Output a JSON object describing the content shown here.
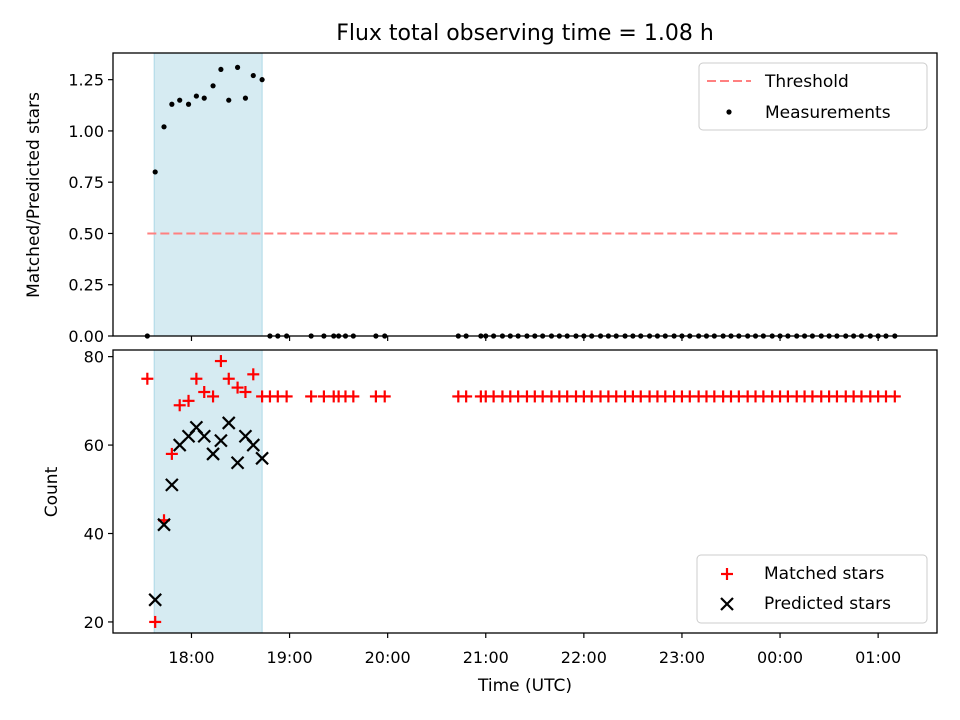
{
  "title": "Flux total observing time = 1.08 h",
  "chart_data": [
    {
      "type": "scatter",
      "panel": "top",
      "ylabel": "Matched/Predicted stars",
      "ylim": [
        0,
        1.38
      ],
      "yticks": [
        0.0,
        0.25,
        0.5,
        0.75,
        1.0,
        1.25
      ],
      "ytick_labels": [
        "0.00",
        "0.25",
        "0.50",
        "0.75",
        "1.00",
        "1.25"
      ],
      "shaded_span_hours": [
        17.62,
        18.72
      ],
      "threshold": {
        "value": 0.5,
        "x_range_hours": [
          17.55,
          25.2
        ],
        "color": "#ff8080"
      },
      "legend": {
        "position": "top-right",
        "entries": [
          "Threshold",
          "Measurements"
        ]
      },
      "series": [
        {
          "name": "Measurements",
          "color": "#000000",
          "x_hours": [
            17.55,
            17.63,
            17.72,
            17.8,
            17.88,
            17.97,
            18.05,
            18.13,
            18.22,
            18.3,
            18.38,
            18.47,
            18.55,
            18.63,
            18.72,
            18.8,
            18.88,
            18.97,
            19.22,
            19.35,
            19.45,
            19.5,
            19.57,
            19.65,
            19.88,
            19.97,
            20.72,
            20.8,
            20.95,
            21.0,
            21.08,
            21.17,
            21.25,
            21.33,
            21.42,
            21.5,
            21.58,
            21.67,
            21.75,
            21.83,
            21.92,
            22.0,
            22.08,
            22.17,
            22.25,
            22.33,
            22.42,
            22.5,
            22.58,
            22.67,
            22.75,
            22.83,
            22.92,
            23.0,
            23.08,
            23.17,
            23.25,
            23.33,
            23.42,
            23.5,
            23.58,
            23.67,
            23.75,
            23.83,
            23.92,
            24.0,
            24.08,
            24.17,
            24.25,
            24.33,
            24.42,
            24.5,
            24.58,
            24.67,
            24.75,
            24.83,
            24.92,
            25.0,
            25.08,
            25.17
          ],
          "values": [
            0.0,
            0.8,
            1.02,
            1.13,
            1.15,
            1.13,
            1.17,
            1.16,
            1.22,
            1.3,
            1.15,
            1.31,
            1.16,
            1.27,
            1.25,
            0.0,
            0.0,
            0.0,
            0.0,
            0.0,
            0.0,
            0.0,
            0.0,
            0.0,
            0.0,
            0.0,
            0.0,
            0.0,
            0.0,
            0.0,
            0.0,
            0.0,
            0.0,
            0.0,
            0.0,
            0.0,
            0.0,
            0.0,
            0.0,
            0.0,
            0.0,
            0.0,
            0.0,
            0.0,
            0.0,
            0.0,
            0.0,
            0.0,
            0.0,
            0.0,
            0.0,
            0.0,
            0.0,
            0.0,
            0.0,
            0.0,
            0.0,
            0.0,
            0.0,
            0.0,
            0.0,
            0.0,
            0.0,
            0.0,
            0.0,
            0.0,
            0.0,
            0.0,
            0.0,
            0.0,
            0.0,
            0.0,
            0.0,
            0.0,
            0.0,
            0.0,
            0.0,
            0.0,
            0.0,
            0.0
          ]
        }
      ]
    },
    {
      "type": "scatter",
      "panel": "bottom",
      "xlabel": "Time (UTC)",
      "ylabel": "Count",
      "xlim_hours": [
        17.2,
        25.6
      ],
      "xticks_hours": [
        18,
        19,
        20,
        21,
        22,
        23,
        24,
        25
      ],
      "xtick_labels": [
        "18:00",
        "19:00",
        "20:00",
        "21:00",
        "22:00",
        "23:00",
        "00:00",
        "01:00"
      ],
      "ylim": [
        17.5,
        81.5
      ],
      "yticks": [
        20,
        40,
        60,
        80
      ],
      "ytick_labels": [
        "20",
        "40",
        "60",
        "80"
      ],
      "shaded_span_hours": [
        17.62,
        18.72
      ],
      "legend": {
        "position": "bottom-right",
        "entries": [
          "Matched stars",
          "Predicted stars"
        ]
      },
      "series": [
        {
          "name": "Matched stars",
          "marker": "+",
          "color": "#ff0000",
          "x_hours": [
            17.55,
            17.63,
            17.72,
            17.8,
            17.88,
            17.97,
            18.05,
            18.13,
            18.22,
            18.3,
            18.38,
            18.47,
            18.55,
            18.63,
            18.72,
            18.8,
            18.88,
            18.97,
            19.22,
            19.35,
            19.45,
            19.5,
            19.57,
            19.65,
            19.88,
            19.97,
            20.72,
            20.8,
            20.95,
            21.0,
            21.08,
            21.17,
            21.25,
            21.33,
            21.42,
            21.5,
            21.58,
            21.67,
            21.75,
            21.83,
            21.92,
            22.0,
            22.08,
            22.17,
            22.25,
            22.33,
            22.42,
            22.5,
            22.58,
            22.67,
            22.75,
            22.83,
            22.92,
            23.0,
            23.08,
            23.17,
            23.25,
            23.33,
            23.42,
            23.5,
            23.58,
            23.67,
            23.75,
            23.83,
            23.92,
            24.0,
            24.08,
            24.17,
            24.25,
            24.33,
            24.42,
            24.5,
            24.58,
            24.67,
            24.75,
            24.83,
            24.92,
            25.0,
            25.08,
            25.17
          ],
          "values": [
            75,
            20,
            43,
            58,
            69,
            70,
            75,
            72,
            71,
            79,
            75,
            73,
            72,
            76,
            71,
            71,
            71,
            71,
            71,
            71,
            71,
            71,
            71,
            71,
            71,
            71,
            71,
            71,
            71,
            71,
            71,
            71,
            71,
            71,
            71,
            71,
            71,
            71,
            71,
            71,
            71,
            71,
            71,
            71,
            71,
            71,
            71,
            71,
            71,
            71,
            71,
            71,
            71,
            71,
            71,
            71,
            71,
            71,
            71,
            71,
            71,
            71,
            71,
            71,
            71,
            71,
            71,
            71,
            71,
            71,
            71,
            71,
            71,
            71,
            71,
            71,
            71,
            71,
            71,
            71
          ]
        },
        {
          "name": "Predicted stars",
          "marker": "x",
          "color": "#000000",
          "x_hours": [
            17.63,
            17.72,
            17.8,
            17.88,
            17.97,
            18.05,
            18.13,
            18.22,
            18.3,
            18.38,
            18.47,
            18.55,
            18.63,
            18.72
          ],
          "values": [
            25,
            42,
            51,
            60,
            62,
            64,
            62,
            58,
            61,
            65,
            56,
            62,
            60,
            57
          ]
        }
      ]
    }
  ]
}
